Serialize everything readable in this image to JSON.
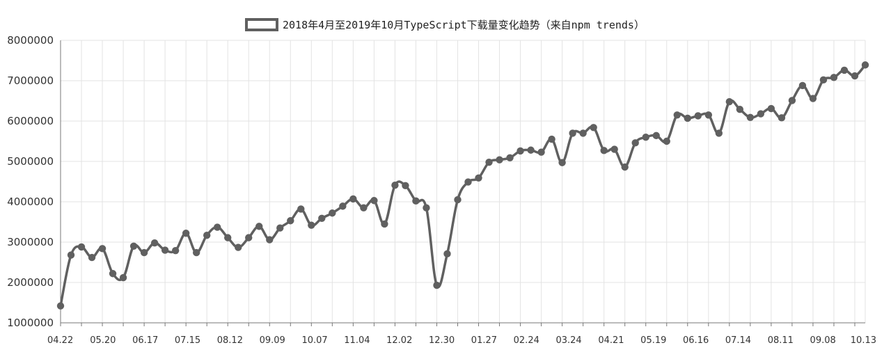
{
  "chart_data": {
    "type": "line",
    "title": "",
    "xlabel": "",
    "ylabel": "",
    "legend_position": "top-center",
    "grid": true,
    "ylim": [
      1000000,
      8000000
    ],
    "y_ticks": [
      "8000000",
      "7000000",
      "6000000",
      "5000000",
      "4000000",
      "3000000",
      "2000000",
      "1000000"
    ],
    "x_tick_labels": [
      "04.22",
      "05.20",
      "06.17",
      "07.15",
      "08.12",
      "09.09",
      "10.07",
      "11.04",
      "12.02",
      "12.30",
      "01.27",
      "02.24",
      "03.24",
      "04.21",
      "05.19",
      "06.16",
      "07.14",
      "08.11",
      "09.08",
      "10.13"
    ],
    "colors": {
      "series": "#606060",
      "grid": "#e3e3e3"
    },
    "series": [
      {
        "name": "2018年4月至2019年10月TypeScript下载量变化趋势（来自npm trends）",
        "values": [
          1420000,
          2680000,
          2880000,
          2620000,
          2840000,
          2220000,
          2120000,
          2900000,
          2740000,
          2980000,
          2800000,
          2790000,
          3220000,
          2740000,
          3170000,
          3370000,
          3110000,
          2870000,
          3110000,
          3390000,
          3060000,
          3350000,
          3530000,
          3820000,
          3420000,
          3590000,
          3720000,
          3890000,
          4070000,
          3850000,
          4030000,
          3450000,
          4410000,
          4400000,
          4020000,
          3850000,
          1930000,
          2710000,
          4050000,
          4490000,
          4590000,
          4980000,
          5040000,
          5090000,
          5260000,
          5280000,
          5230000,
          5550000,
          4970000,
          5700000,
          5700000,
          5840000,
          5270000,
          5300000,
          4860000,
          5460000,
          5600000,
          5640000,
          5500000,
          6150000,
          6070000,
          6130000,
          6150000,
          5700000,
          6480000,
          6290000,
          6090000,
          6180000,
          6310000,
          6080000,
          6510000,
          6880000,
          6560000,
          7020000,
          7080000,
          7260000,
          7120000,
          7390000
        ]
      }
    ]
  }
}
